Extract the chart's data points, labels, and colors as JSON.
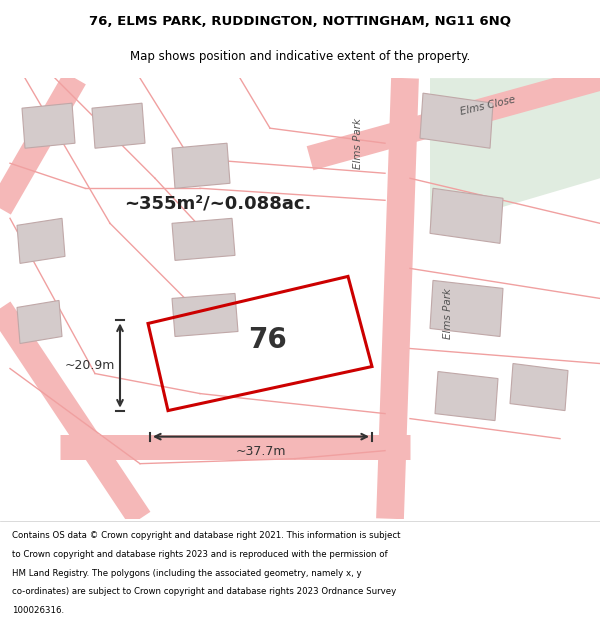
{
  "title_line1": "76, ELMS PARK, RUDDINGTON, NOTTINGHAM, NG11 6NQ",
  "title_line2": "Map shows position and indicative extent of the property.",
  "footer_lines": [
    "Contains OS data © Crown copyright and database right 2021. This information is subject",
    "to Crown copyright and database rights 2023 and is reproduced with the permission of",
    "HM Land Registry. The polygons (including the associated geometry, namely x, y",
    "co-ordinates) are subject to Crown copyright and database rights 2023 Ordnance Survey",
    "100026316."
  ],
  "area_text": "~355m²/~0.088ac.",
  "property_label": "76",
  "dim_width": "~37.7m",
  "dim_height": "~20.9m",
  "map_bg": "#ede5e5",
  "plot_color": "#cc0000",
  "road_color": "#f5b8b8",
  "building_fill": "#d4cbcb",
  "building_stroke": "#c0a8a8",
  "green_area": "#e0ece0",
  "parcel_color": "#f0a0a0",
  "label_color": "#555555",
  "dim_color": "#333333"
}
